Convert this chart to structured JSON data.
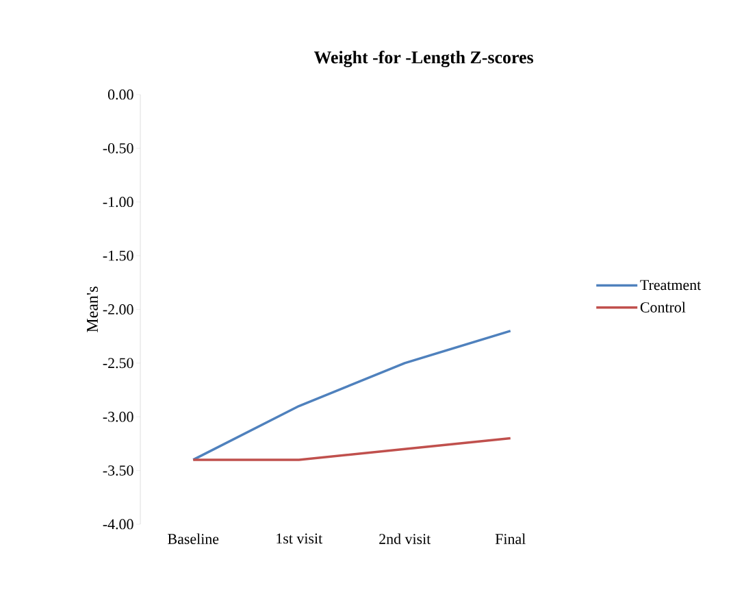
{
  "chart_data": {
    "type": "line",
    "title": "Weight -for -Length Z-scores",
    "ylabel": "Mean's",
    "categories": [
      "Baseline",
      "1st visit",
      "2nd visit",
      "Final"
    ],
    "series": [
      {
        "name": "Treatment",
        "color": "#4f81bd",
        "values": [
          -3.4,
          -2.9,
          -2.5,
          -2.2
        ]
      },
      {
        "name": "Control",
        "color": "#c0504d",
        "values": [
          -3.4,
          -3.4,
          -3.3,
          -3.2
        ]
      }
    ],
    "ylim": [
      -4,
      0
    ],
    "yticks": [
      {
        "value": 0,
        "label": "0.00"
      },
      {
        "value": -0.5,
        "label": "-0.50"
      },
      {
        "value": -1,
        "label": "-1.00"
      },
      {
        "value": -1.5,
        "label": "-1.50"
      },
      {
        "value": -2,
        "label": "-2.00"
      },
      {
        "value": -2.5,
        "label": "-2.50"
      },
      {
        "value": -3,
        "label": "-3.00"
      },
      {
        "value": -3.5,
        "label": "-3.50"
      },
      {
        "value": -4,
        "label": "-4.00"
      }
    ],
    "grid": false,
    "legend": "right",
    "marker": "none",
    "line_style": "solid"
  }
}
